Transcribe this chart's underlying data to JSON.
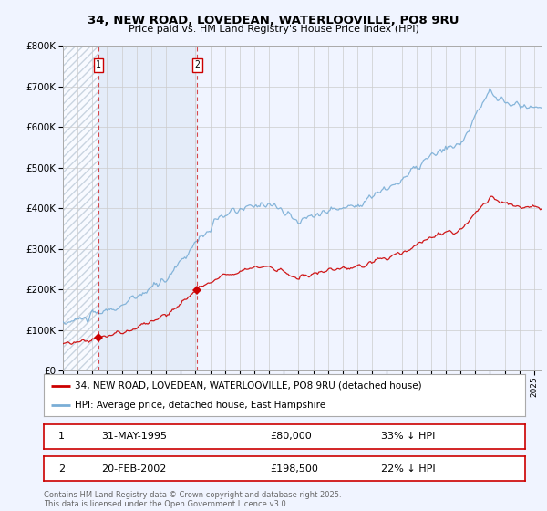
{
  "title": "34, NEW ROAD, LOVEDEAN, WATERLOOVILLE, PO8 9RU",
  "subtitle": "Price paid vs. HM Land Registry's House Price Index (HPI)",
  "background_color": "#f0f4ff",
  "plot_bg_color": "#f0f4ff",
  "grid_color": "#cccccc",
  "sale1_date_x": 1995.42,
  "sale1_price": 80000,
  "sale2_date_x": 2002.13,
  "sale2_price": 198500,
  "sale1_label": "31-MAY-1995",
  "sale2_label": "20-FEB-2002",
  "sale1_pct": "33% ↓ HPI",
  "sale2_pct": "22% ↓ HPI",
  "legend_house": "34, NEW ROAD, LOVEDEAN, WATERLOOVILLE, PO8 9RU (detached house)",
  "legend_hpi": "HPI: Average price, detached house, East Hampshire",
  "footer": "Contains HM Land Registry data © Crown copyright and database right 2025.\nThis data is licensed under the Open Government Licence v3.0.",
  "house_line_color": "#cc0000",
  "hpi_line_color": "#7aaed6",
  "marker_color": "#cc0000",
  "dashed_line_color": "#cc0000",
  "ylim": [
    0,
    800000
  ],
  "xlim_start": 1993.0,
  "xlim_end": 2025.5
}
